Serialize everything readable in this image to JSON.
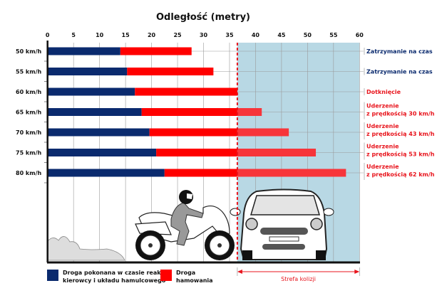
{
  "chart_data": {
    "type": "bar",
    "stacked": true,
    "orientation": "horizontal",
    "title": "Odległość (metry)",
    "xlim": [
      0,
      60
    ],
    "xticks": [
      "0",
      "5",
      "10",
      "15",
      "20",
      "25",
      "30",
      "35",
      "40",
      "45",
      "50",
      "55",
      "60"
    ],
    "grid": true,
    "categories": [
      "50 km/h",
      "55 km/h",
      "60 km/h",
      "65 km/h",
      "70 km/h",
      "75 km/h",
      "80 km/h"
    ],
    "series": [
      {
        "name": "Droga pokonana w czasie reakcji kierowcy i układu hamulcowego",
        "color": "#0a2a6e",
        "values": [
          14.0,
          15.3,
          16.8,
          18.1,
          19.6,
          20.9,
          22.5
        ]
      },
      {
        "name": "Droga hamowania",
        "color": "#ff0000",
        "values": [
          13.7,
          16.6,
          19.7,
          23.1,
          26.8,
          30.7,
          34.9
        ]
      }
    ],
    "collision_threshold": 36.5,
    "collision_zone_label": "Strefa kolizji",
    "collision_zone_color": "#b8d8e4",
    "outcomes": [
      {
        "lines": [
          "Zatrzymanie na czas"
        ],
        "color": "#0a2a6e"
      },
      {
        "lines": [
          "Zatrzymanie na czas"
        ],
        "color": "#0a2a6e"
      },
      {
        "lines": [
          "Dotknięcie"
        ],
        "color": "#e8141c"
      },
      {
        "lines": [
          "Uderzenie",
          "z prędkością 30 km/h"
        ],
        "color": "#e8141c"
      },
      {
        "lines": [
          "Uderzenie",
          "z prędkością 43 km/h"
        ],
        "color": "#e8141c"
      },
      {
        "lines": [
          "Uderzenie",
          "z prędkością 53 km/h"
        ],
        "color": "#e8141c"
      },
      {
        "lines": [
          "Uderzenie",
          "z prędkością 62 km/h"
        ],
        "color": "#e8141c"
      }
    ],
    "legend": {
      "placement": "bottom-left",
      "items": [
        {
          "lines": [
            "Droga pokonana w czasie reakcji",
            "kierowcy i układu hamulcowego"
          ],
          "color": "#0a2a6e"
        },
        {
          "lines": [
            "Droga",
            "hamowania"
          ],
          "color": "#ff0000"
        }
      ]
    }
  }
}
